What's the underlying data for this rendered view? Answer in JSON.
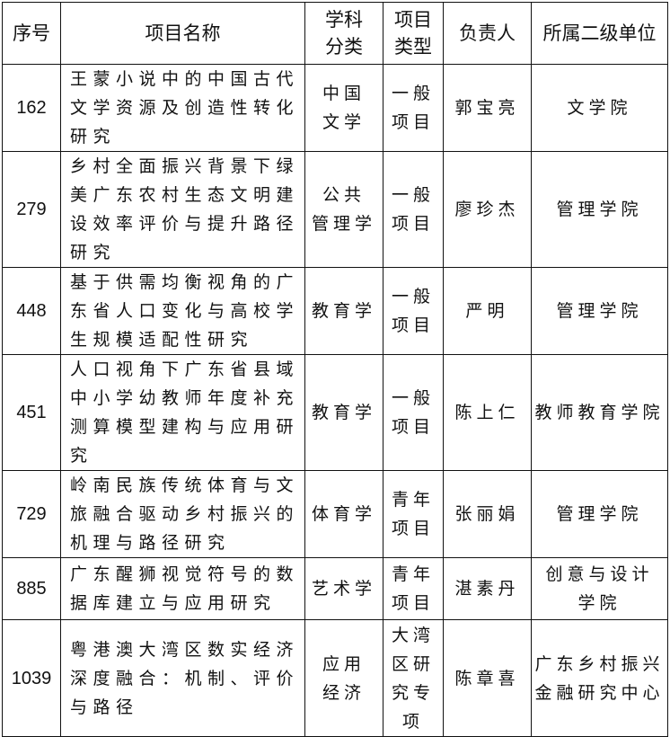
{
  "headers": [
    "序号",
    "项目名称",
    "学科分类",
    "项目类型",
    "负责人",
    "所属二级单位"
  ],
  "header_lines": {
    "subject": [
      "学科",
      "分类"
    ],
    "type": [
      "项目",
      "类型"
    ]
  },
  "rows": [
    {
      "id": "162",
      "name": "王蒙小说中的中国古代文学资源及创造性转化研究",
      "subject": [
        "中国",
        "文学"
      ],
      "type": [
        "一般",
        "项目"
      ],
      "leader": "郭宝亮",
      "unit": [
        "文学院"
      ]
    },
    {
      "id": "279",
      "name": "乡村全面振兴背景下绿美广东农村生态文明建设效率评价与提升路径研究",
      "subject": [
        "公共",
        "管理学"
      ],
      "type": [
        "一般",
        "项目"
      ],
      "leader": "廖珍杰",
      "unit": [
        "管理学院"
      ]
    },
    {
      "id": "448",
      "name": "基于供需均衡视角的广东省人口变化与高校学生规模适配性研究",
      "subject": [
        "教育学"
      ],
      "type": [
        "一般",
        "项目"
      ],
      "leader": "严明",
      "unit": [
        "管理学院"
      ]
    },
    {
      "id": "451",
      "name": "人口视角下广东省县域中小学幼教师年度补充测算模型建构与应用研究",
      "subject": [
        "教育学"
      ],
      "type": [
        "一般",
        "项目"
      ],
      "leader": "陈上仁",
      "unit": [
        "教师教育学院"
      ]
    },
    {
      "id": "729",
      "name": "岭南民族传统体育与文旅融合驱动乡村振兴的机理与路径研究",
      "subject": [
        "体育学"
      ],
      "type": [
        "青年",
        "项目"
      ],
      "leader": "张丽娟",
      "unit": [
        "管理学院"
      ]
    },
    {
      "id": "885",
      "name": "广东醒狮视觉符号的数据库建立与应用研究",
      "subject": [
        "艺术学"
      ],
      "type": [
        "青年",
        "项目"
      ],
      "leader": "湛素丹",
      "unit": [
        "创意与设计",
        "学院"
      ]
    },
    {
      "id": "1039",
      "name": "粤港澳大湾区数实经济深度融合：机制、评价与路径",
      "subject": [
        "应用",
        "经济"
      ],
      "type": [
        "大湾",
        "区研",
        "究专",
        "项"
      ],
      "leader": "陈章喜",
      "unit": [
        "广东乡村振兴",
        "金融研究中心"
      ]
    }
  ]
}
